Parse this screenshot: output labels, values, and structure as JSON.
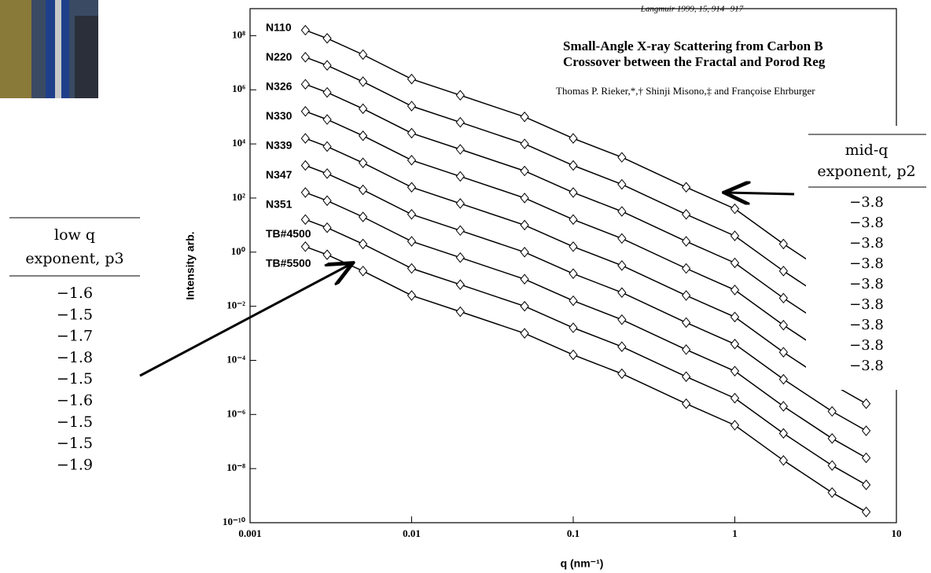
{
  "chart_data": {
    "type": "scatter",
    "xlabel": "q (nm⁻¹)",
    "ylabel": "Intensity arb.",
    "xscale": "log",
    "yscale": "log",
    "xlim": [
      0.001,
      10
    ],
    "ylim": [
      1e-10,
      1000000000.0
    ],
    "xticks": [
      0.001,
      0.01,
      0.1,
      1,
      10
    ],
    "yticks": [
      {
        "value": 100000000.0,
        "label": "10⁸"
      },
      {
        "value": 1000000.0,
        "label": "10⁶"
      },
      {
        "value": 10000.0,
        "label": "10⁴"
      },
      {
        "value": 100,
        "label": "10²"
      },
      {
        "value": 1,
        "label": "10⁰"
      },
      {
        "value": 0.01,
        "label": "10⁻²"
      },
      {
        "value": 0.0001,
        "label": "10⁻⁴"
      },
      {
        "value": 1e-06,
        "label": "10⁻⁶"
      },
      {
        "value": 1e-08,
        "label": "10⁻⁸"
      },
      {
        "value": 1e-10,
        "label": "10⁻¹⁰"
      }
    ],
    "marker_color": "#000000",
    "x": [
      0.0022,
      0.003,
      0.005,
      0.01,
      0.02,
      0.05,
      0.1,
      0.2,
      0.5,
      1,
      2,
      4,
      6.5
    ],
    "series": [
      {
        "name": "N110",
        "values": [
          160000000.0,
          80000000.0,
          20000000.0,
          2500000.0,
          630000.0,
          100000.0,
          16000.0,
          3200.0,
          250,
          40,
          2,
          0.13,
          0.025
        ]
      },
      {
        "name": "N220",
        "values": [
          16000000.0,
          8000000.0,
          2000000.0,
          250000.0,
          63000.0,
          10000.0,
          1600.0,
          320,
          25,
          4,
          0.2,
          0.013,
          0.0025
        ]
      },
      {
        "name": "N326",
        "values": [
          1600000.0,
          800000.0,
          200000.0,
          25000.0,
          6300.0,
          1000.0,
          160,
          32,
          2.5,
          0.4,
          0.02,
          0.0013,
          0.00025
        ]
      },
      {
        "name": "N330",
        "values": [
          160000.0,
          80000.0,
          20000.0,
          2500.0,
          630,
          100,
          16,
          3.2,
          0.25,
          0.04,
          0.002,
          0.00013,
          2.5e-05
        ]
      },
      {
        "name": "N339",
        "values": [
          16000.0,
          8000.0,
          2000.0,
          250,
          63,
          10,
          1.6,
          0.32,
          0.025,
          0.004,
          0.0002,
          1.3e-05,
          2.5e-06
        ]
      },
      {
        "name": "N347",
        "values": [
          1600.0,
          800,
          200,
          25,
          6.3,
          1,
          0.16,
          0.032,
          0.0025,
          0.0004,
          2e-05,
          1.3e-06,
          2.5e-07
        ]
      },
      {
        "name": "N351",
        "values": [
          160,
          80,
          20,
          2.5,
          0.63,
          0.1,
          0.016,
          0.0032,
          0.00025,
          4e-05,
          2e-06,
          1.3e-07,
          2.5e-08
        ]
      },
      {
        "name": "TB#4500",
        "values": [
          16,
          8,
          2,
          0.25,
          0.063,
          0.01,
          0.0016,
          0.00032,
          2.5e-05,
          4e-06,
          2e-07,
          1.3e-08,
          2.5e-09
        ]
      },
      {
        "name": "TB#5500",
        "values": [
          1.6,
          0.8,
          0.2,
          0.025,
          0.0063,
          0.001,
          0.00016,
          3.2e-05,
          2.5e-06,
          4e-07,
          2e-08,
          1.3e-09,
          2.5e-10
        ]
      }
    ]
  },
  "paper": {
    "citation": "Langmuir 1999, 15, 914−917",
    "title_lines": [
      "Small-Angle X-ray Scattering from Carbon B",
      "Crossover between the Fractal and Porod Reg"
    ],
    "authors": "Thomas P. Rieker,*,† Shinji Misono,‡ and Françoise Ehrburger"
  },
  "low_q_table": {
    "header": [
      "low q",
      "exponent, p3"
    ],
    "rows": [
      "−1.6",
      "−1.5",
      "−1.7",
      "−1.8",
      "−1.5",
      "−1.6",
      "−1.5",
      "−1.5",
      "−1.9"
    ]
  },
  "mid_q_table": {
    "header": [
      "mid-q",
      "exponent, p2"
    ],
    "rows": [
      "−3.8",
      "−3.8",
      "−3.8",
      "−3.8",
      "−3.8",
      "−3.8",
      "−3.8",
      "−3.8",
      "−3.8"
    ]
  }
}
